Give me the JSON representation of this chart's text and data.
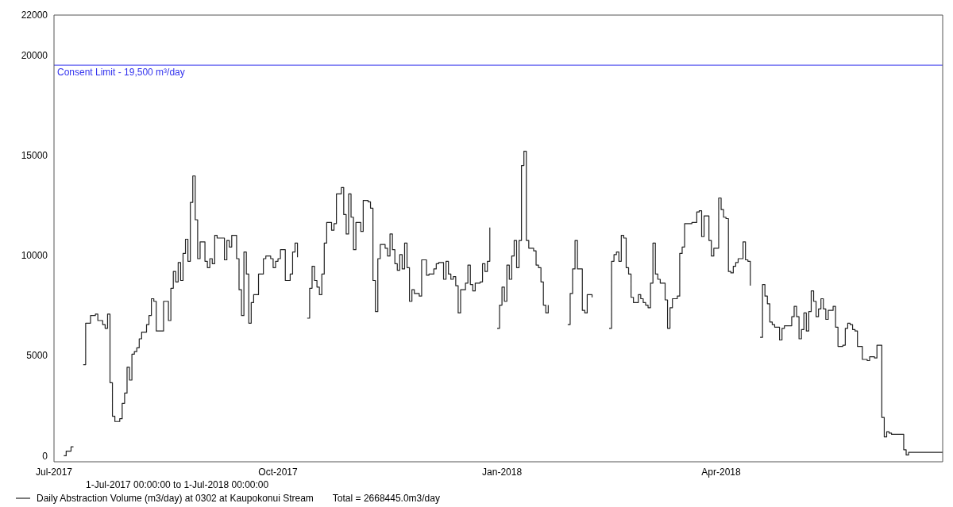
{
  "chart_data": {
    "type": "step",
    "annotations": [
      "1-Jul-2017 00:00:00 to  1-Jul-2018 00:00:00",
      "Total = 2668445.0m3/day"
    ],
    "xlim": [
      "2017-07-01",
      "2018-07-01"
    ],
    "xticks": [
      {
        "value": "2017-07-01",
        "label": "Jul-2017"
      },
      {
        "value": "2017-10-01",
        "label": "Oct-2017"
      },
      {
        "value": "2018-01-01",
        "label": "Jan-2018"
      },
      {
        "value": "2018-04-01",
        "label": "Apr-2018"
      }
    ],
    "ylim": [
      -300,
      22000
    ],
    "yticks": [
      0,
      5000,
      10000,
      15000,
      20000,
      22000
    ],
    "grid": false,
    "legend": "bottom",
    "ref_lines": [
      {
        "axis": "y",
        "value": 19500,
        "label": "Consent Limit - 19,500 m³/day",
        "color": "#3333ee"
      }
    ],
    "series": [
      {
        "name": "Daily Abstraction Volume (m3/day) at 0302 at Kaupokonui Stream",
        "color": "#222222",
        "x": [
          "2017-07-05",
          "2017-07-06",
          "2017-07-08",
          "2017-07-09",
          "2017-07-10",
          "2017-07-13",
          "2017-07-14",
          "2017-07-16",
          "2017-07-18",
          "2017-07-19",
          "2017-07-21",
          "2017-07-22",
          "2017-07-23",
          "2017-07-24",
          "2017-07-25",
          "2017-07-26",
          "2017-07-28",
          "2017-07-29",
          "2017-07-30",
          "2017-07-31",
          "2017-08-01",
          "2017-08-02",
          "2017-08-03",
          "2017-08-04",
          "2017-08-05",
          "2017-08-06",
          "2017-08-08",
          "2017-08-09",
          "2017-08-10",
          "2017-08-11",
          "2017-08-12",
          "2017-08-15",
          "2017-08-17",
          "2017-08-18",
          "2017-08-19",
          "2017-08-20",
          "2017-08-21",
          "2017-08-22",
          "2017-08-23",
          "2017-08-24",
          "2017-08-25",
          "2017-08-26",
          "2017-08-27",
          "2017-08-28",
          "2017-08-29",
          "2017-08-30",
          "2017-09-01",
          "2017-09-02",
          "2017-09-03",
          "2017-09-04",
          "2017-09-05",
          "2017-09-06",
          "2017-09-09",
          "2017-09-10",
          "2017-09-11",
          "2017-09-12",
          "2017-09-14",
          "2017-09-15",
          "2017-09-16",
          "2017-09-17",
          "2017-09-18",
          "2017-09-19",
          "2017-09-20",
          "2017-09-21",
          "2017-09-23",
          "2017-09-25",
          "2017-09-26",
          "2017-09-28",
          "2017-09-29",
          "2017-09-30",
          "2017-10-01",
          "2017-10-02",
          "2017-10-04",
          "2017-10-06",
          "2017-10-07",
          "2017-10-08",
          "2017-10-09",
          "2017-10-10",
          "2017-10-13",
          "2017-10-14",
          "2017-10-15",
          "2017-10-16",
          "2017-10-17",
          "2017-10-18",
          "2017-10-19",
          "2017-10-20",
          "2017-10-21",
          "2017-10-23",
          "2017-10-24",
          "2017-10-25",
          "2017-10-27",
          "2017-10-28",
          "2017-10-29",
          "2017-10-30",
          "2017-10-31",
          "2017-11-01",
          "2017-11-02",
          "2017-11-04",
          "2017-11-05",
          "2017-11-07",
          "2017-11-08",
          "2017-11-09",
          "2017-11-10",
          "2017-11-11",
          "2017-11-12",
          "2017-11-14",
          "2017-11-15",
          "2017-11-16",
          "2017-11-17",
          "2017-11-18",
          "2017-11-19",
          "2017-11-20",
          "2017-11-21",
          "2017-11-22",
          "2017-11-23",
          "2017-11-24",
          "2017-11-25",
          "2017-11-26",
          "2017-11-28",
          "2017-11-29",
          "2017-12-01",
          "2017-12-02",
          "2017-12-04",
          "2017-12-05",
          "2017-12-06",
          "2017-12-08",
          "2017-12-09",
          "2017-12-10",
          "2017-12-11",
          "2017-12-12",
          "2017-12-13",
          "2017-12-14",
          "2017-12-15",
          "2017-12-17",
          "2017-12-18",
          "2017-12-19",
          "2017-12-20",
          "2017-12-21",
          "2017-12-23",
          "2017-12-24",
          "2017-12-25",
          "2017-12-26",
          "2017-12-27",
          "2017-12-28",
          "2017-12-30",
          "2017-12-31",
          "2018-01-01",
          "2018-01-02",
          "2018-01-03",
          "2018-01-04",
          "2018-01-05",
          "2018-01-06",
          "2018-01-07",
          "2018-01-08",
          "2018-01-09",
          "2018-01-10",
          "2018-01-11",
          "2018-01-12",
          "2018-01-14",
          "2018-01-15",
          "2018-01-16",
          "2018-01-17",
          "2018-01-18",
          "2018-01-19",
          "2018-01-20",
          "2018-01-21",
          "2018-01-28",
          "2018-01-29",
          "2018-01-30",
          "2018-01-31",
          "2018-02-01",
          "2018-02-03",
          "2018-02-04",
          "2018-02-05",
          "2018-02-07",
          "2018-02-08",
          "2018-02-14",
          "2018-02-15",
          "2018-02-16",
          "2018-02-17",
          "2018-02-18",
          "2018-02-19",
          "2018-02-20",
          "2018-02-21",
          "2018-02-22",
          "2018-02-23",
          "2018-02-24",
          "2018-02-26",
          "2018-02-27",
          "2018-02-28",
          "2018-03-01",
          "2018-03-02",
          "2018-03-03",
          "2018-03-04",
          "2018-03-05",
          "2018-03-06",
          "2018-03-07",
          "2018-03-09",
          "2018-03-10",
          "2018-03-11",
          "2018-03-12",
          "2018-03-14",
          "2018-03-15",
          "2018-03-16",
          "2018-03-17",
          "2018-03-20",
          "2018-03-22",
          "2018-03-23",
          "2018-03-24",
          "2018-03-25",
          "2018-03-27",
          "2018-03-28",
          "2018-03-29",
          "2018-03-31",
          "2018-04-01",
          "2018-04-02",
          "2018-04-03",
          "2018-04-04",
          "2018-04-05",
          "2018-04-06",
          "2018-04-07",
          "2018-04-08",
          "2018-04-10",
          "2018-04-11",
          "2018-04-12",
          "2018-04-13",
          "2018-04-14",
          "2018-04-17",
          "2018-04-18",
          "2018-04-19",
          "2018-04-20",
          "2018-04-21",
          "2018-04-22",
          "2018-04-23",
          "2018-04-25",
          "2018-04-26",
          "2018-04-27",
          "2018-04-30",
          "2018-05-01",
          "2018-05-02",
          "2018-05-03",
          "2018-05-04",
          "2018-05-05",
          "2018-05-06",
          "2018-05-07",
          "2018-05-08",
          "2018-05-09",
          "2018-05-10",
          "2018-05-11",
          "2018-05-12",
          "2018-05-13",
          "2018-05-14",
          "2018-05-15",
          "2018-05-17",
          "2018-05-18",
          "2018-05-19",
          "2018-05-21",
          "2018-05-22",
          "2018-05-23",
          "2018-05-24",
          "2018-05-25",
          "2018-05-26",
          "2018-05-27",
          "2018-05-29",
          "2018-05-31",
          "2018-06-01",
          "2018-06-03",
          "2018-06-04",
          "2018-06-06",
          "2018-06-07",
          "2018-06-08",
          "2018-06-09",
          "2018-06-10",
          "2018-06-15",
          "2018-06-16",
          "2018-06-17",
          "2018-07-01"
        ],
        "values": [
          0,
          230,
          450,
          450,
          null,
          4550,
          6620,
          7000,
          7070,
          6750,
          6550,
          6360,
          7070,
          3650,
          1970,
          1710,
          1850,
          2620,
          3130,
          4420,
          3780,
          5070,
          5200,
          5390,
          5840,
          6170,
          6550,
          7000,
          7840,
          7710,
          6230,
          7710,
          6750,
          8360,
          9200,
          8680,
          9650,
          8750,
          10100,
          10810,
          9710,
          12650,
          13970,
          11780,
          9840,
          10680,
          9710,
          9390,
          9840,
          9590,
          11000,
          10870,
          9780,
          10750,
          10420,
          11000,
          9840,
          8290,
          7000,
          10170,
          9070,
          6620,
          7650,
          8040,
          9070,
          9840,
          9970,
          9840,
          9390,
          9710,
          9840,
          10290,
          8750,
          9070,
          10170,
          10620,
          9910,
          null,
          6870,
          8360,
          9460,
          8750,
          8420,
          8040,
          9070,
          10620,
          11650,
          11260,
          11590,
          13070,
          13390,
          12040,
          11070,
          13070,
          11910,
          10290,
          11650,
          11200,
          12750,
          12680,
          12360,
          8750,
          7200,
          9840,
          10550,
          10360,
          9970,
          11070,
          10290,
          9590,
          9260,
          10040,
          9330,
          10620,
          9390,
          7710,
          8290,
          8100,
          7970,
          9780,
          9010,
          9070,
          9330,
          9590,
          9650,
          8810,
          9710,
          9070,
          8810,
          8940,
          8490,
          7130,
          8290,
          8620,
          9520,
          8550,
          8230,
          8620,
          8680,
          9590,
          9200,
          9710,
          11390,
          null,
          6360,
          7520,
          8420,
          7710,
          9520,
          8810,
          9970,
          10750,
          9390,
          10750,
          14490,
          15200,
          10750,
          10360,
          10230,
          9520,
          9390,
          8680,
          7520,
          7130,
          7520,
          null,
          6550,
          8100,
          9330,
          10750,
          9330,
          7260,
          7130,
          8040,
          7910,
          null,
          6360,
          9710,
          10040,
          10170,
          9710,
          11000,
          10870,
          9390,
          9070,
          7910,
          7650,
          8040,
          7840,
          7650,
          7520,
          7390,
          8620,
          10620,
          9070,
          8810,
          8620,
          7780,
          6360,
          7390,
          7840,
          7970,
          10100,
          10420,
          11590,
          11650,
          12170,
          12230,
          10940,
          11970,
          10750,
          9970,
          10360,
          12870,
          12290,
          11910,
          11840,
          9200,
          9130,
          9460,
          9650,
          9840,
          10680,
          9780,
          9710,
          8490,
          null,
          5910,
          8550,
          7970,
          7590,
          6680,
          6550,
          6420,
          5780,
          6360,
          6490,
          6940,
          7460,
          6940,
          5840,
          6300,
          7130,
          6230,
          7200,
          8230,
          7710,
          6940,
          7330,
          7840,
          7330,
          6810,
          7260,
          7460,
          6420,
          5460,
          5520,
          6360,
          6620,
          6550,
          6300,
          6230,
          5460,
          4810,
          4750,
          4940,
          4880,
          5520,
          1910,
          940,
          1200,
          1130,
          1070,
          300,
          40,
          170,
          170
        ]
      }
    ]
  }
}
